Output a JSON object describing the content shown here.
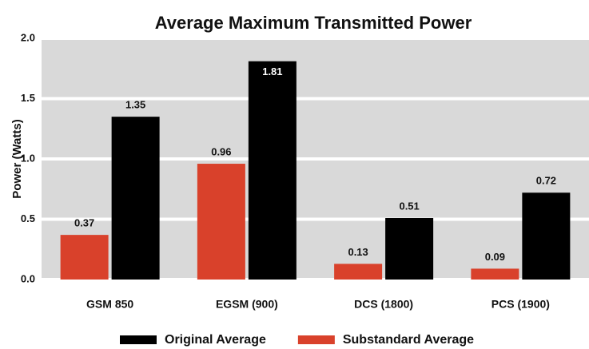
{
  "chart_data": {
    "type": "bar",
    "title": "Average Maximum Transmitted Power",
    "ylabel": "Power (Watts)",
    "categories": [
      "GSM 850",
      "EGSM (900)",
      "DCS (1800)",
      "PCS (1900)"
    ],
    "series": [
      {
        "name": "Substandard Average",
        "color": "#d9412b",
        "values": [
          0.37,
          0.96,
          0.13,
          0.09
        ]
      },
      {
        "name": "Original Average",
        "color": "#000000",
        "values": [
          1.35,
          1.81,
          0.51,
          0.72
        ]
      }
    ],
    "ylim": [
      0,
      2
    ],
    "yticks": [
      {
        "value": 0,
        "label": "0.0"
      },
      0.5,
      {
        "value": 1,
        "label": "1.0"
      },
      1.5,
      {
        "value": 2,
        "label": "2.0"
      }
    ],
    "grid": true
  }
}
